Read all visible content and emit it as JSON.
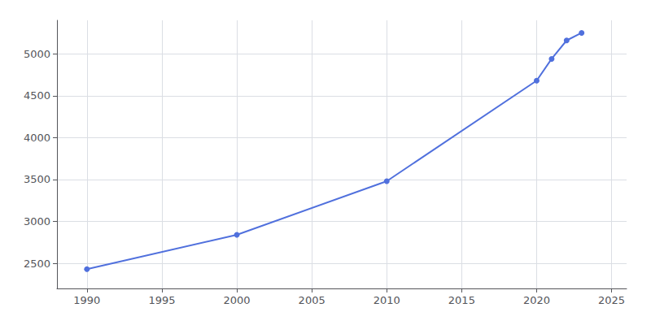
{
  "chart_data": {
    "type": "line",
    "x": [
      1990,
      2000,
      2010,
      2020,
      2021,
      2022,
      2023
    ],
    "values": [
      2430,
      2840,
      3480,
      4680,
      4940,
      5160,
      5250
    ],
    "xlim": [
      1988,
      2026
    ],
    "ylim": [
      2200,
      5400
    ],
    "xticks": [
      1990,
      1995,
      2000,
      2005,
      2010,
      2015,
      2020,
      2025
    ],
    "yticks": [
      2500,
      3000,
      3500,
      4000,
      4500,
      5000
    ],
    "grid": true
  }
}
